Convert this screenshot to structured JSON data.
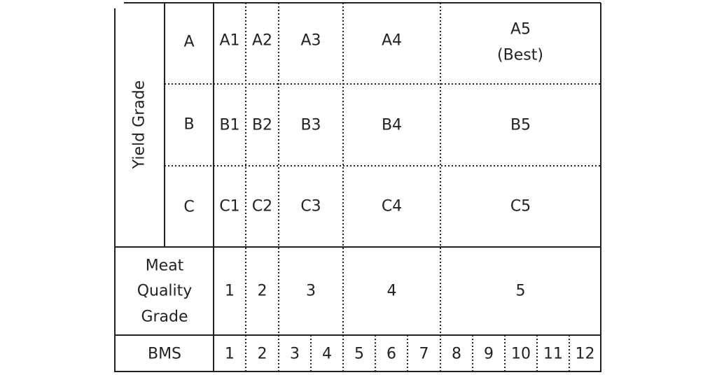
{
  "yield_grade_label": "Yield Grade",
  "yield_grades": [
    "A",
    "B",
    "C"
  ],
  "grid": [
    [
      "A1",
      "A2",
      "A3",
      "A4",
      "A5"
    ],
    [
      "B1",
      "B2",
      "B3",
      "B4",
      "B5"
    ],
    [
      "C1",
      "C2",
      "C3",
      "C4",
      "C5"
    ]
  ],
  "best_note": "(Best)",
  "meat_quality_label": [
    "Meat",
    "Quality",
    "Grade"
  ],
  "meat_quality_grades": [
    "1",
    "2",
    "3",
    "4",
    "5"
  ],
  "bms_label": "BMS",
  "bms_values": [
    "1",
    "2",
    "3",
    "4",
    "5",
    "6",
    "7",
    "8",
    "9",
    "10",
    "11",
    "12"
  ],
  "colors": {
    "line": "#222222",
    "background": "#ffffff"
  }
}
